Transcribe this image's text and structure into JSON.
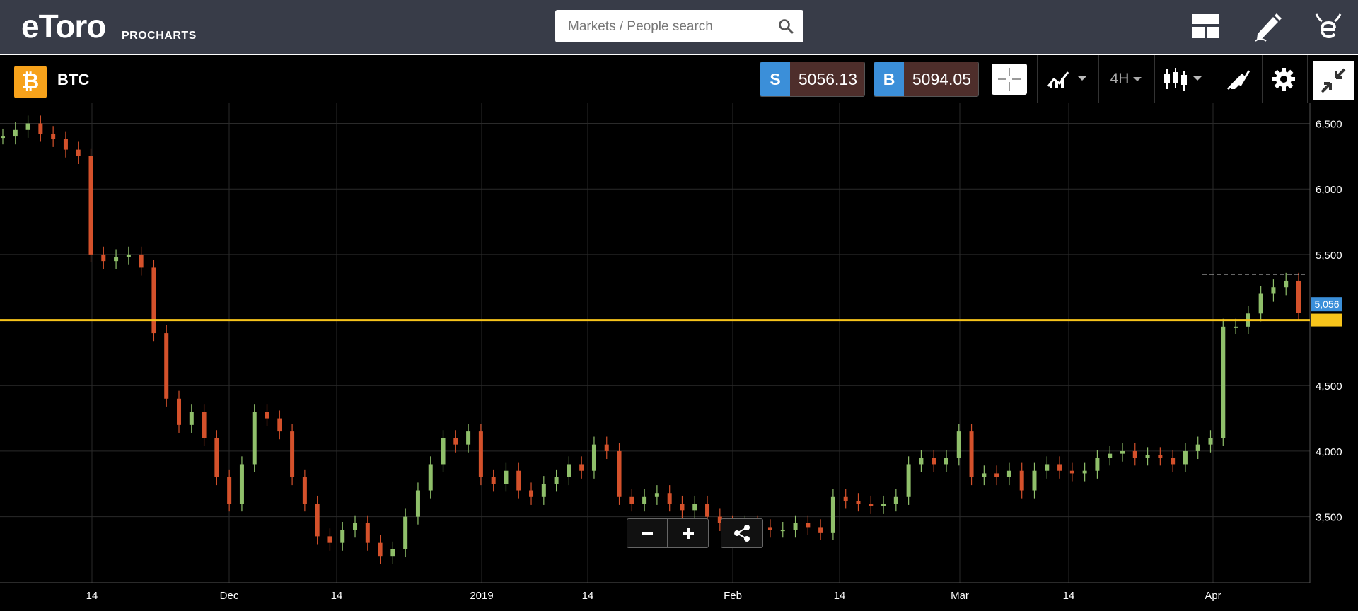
{
  "header": {
    "logo_text": "eToro",
    "logo_sub": "PROCHARTS",
    "search": {
      "placeholder": "Markets / People search"
    },
    "icons": [
      "layout-icon",
      "edit-icon",
      "etoro-home-icon"
    ]
  },
  "instrument": {
    "symbol": "BTC",
    "sell": {
      "label": "S",
      "price": "5056.13"
    },
    "buy": {
      "label": "B",
      "price": "5094.05"
    },
    "timeframe": "4H"
  },
  "colors": {
    "accent": "#f7a21b",
    "price_line": "#f7c41b",
    "sell_tag": "#3b8fd9",
    "up_candle": "#8fbf6a",
    "down_candle": "#d4512b"
  },
  "chart_data": {
    "type": "candlestick",
    "instrument": "BTC",
    "interval": "4H",
    "y_axis": {
      "ticks": [
        6500,
        6000,
        5500,
        4500,
        4000,
        3500
      ],
      "tick_labels": [
        "6,500",
        "6,000",
        "5,500",
        "4,500",
        "4,000",
        "3,500"
      ],
      "range": [
        3050,
        6600
      ]
    },
    "x_axis": {
      "tick_labels": [
        "14",
        "Dec",
        "14",
        "2019",
        "14",
        "Feb",
        "14",
        "Mar",
        "14",
        "Apr"
      ]
    },
    "current_price_label": "5,056",
    "current_price": 5056,
    "horizontal_line": 5000,
    "dashed_resistance": 5350,
    "grid": true,
    "close_series": [
      6400,
      6450,
      6500,
      6420,
      6380,
      6300,
      6250,
      5500,
      5450,
      5480,
      5500,
      5400,
      4900,
      4400,
      4200,
      4300,
      4100,
      3800,
      3600,
      3900,
      4300,
      4250,
      4150,
      3800,
      3600,
      3350,
      3300,
      3400,
      3450,
      3300,
      3200,
      3250,
      3500,
      3700,
      3900,
      4100,
      4050,
      4150,
      3800,
      3750,
      3850,
      3700,
      3650,
      3750,
      3800,
      3900,
      3850,
      4050,
      4000,
      3650,
      3600,
      3650,
      3680,
      3600,
      3550,
      3600,
      3500,
      3450,
      3400,
      3450,
      3420,
      3400,
      3400,
      3450,
      3420,
      3380,
      3650,
      3620,
      3600,
      3580,
      3600,
      3650,
      3900,
      3950,
      3900,
      3950,
      4150,
      3800,
      3830,
      3800,
      3850,
      3700,
      3850,
      3900,
      3850,
      3830,
      3850,
      3950,
      3980,
      4000,
      3950,
      3970,
      3950,
      3900,
      4000,
      4050,
      4100,
      4950,
      4950,
      5050,
      5200,
      5250,
      5300,
      5056
    ]
  }
}
